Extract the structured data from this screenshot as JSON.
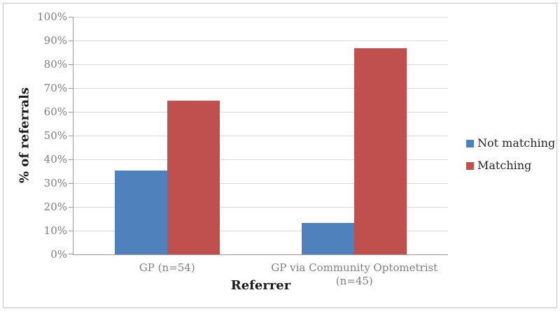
{
  "chart_data": {
    "type": "bar",
    "title": "",
    "xlabel": "Referrer",
    "ylabel": "% of referrals",
    "categories": [
      "GP (n=54)",
      "GP via Community Optometrist (n=45)"
    ],
    "series": [
      {
        "name": "Not matching",
        "color": "#4F81BD",
        "values": [
          35.2,
          13.3
        ]
      },
      {
        "name": "Matching",
        "color": "#C0504D",
        "values": [
          64.8,
          86.7
        ]
      }
    ],
    "ylim": [
      0,
      100
    ],
    "ytick_step": 10,
    "ytick_labels": [
      "0%",
      "10%",
      "20%",
      "30%",
      "40%",
      "50%",
      "60%",
      "70%",
      "80%",
      "90%",
      "100%"
    ],
    "grid": true,
    "legend_position": "right",
    "legend": [
      "Not matching",
      "Matching"
    ]
  },
  "colors": {
    "background": "#ffffff",
    "frame_border": "#c4c4c4",
    "axis_line": "#9b9b9b",
    "gridline": "#d9d9d9",
    "tick_label": "#808080",
    "category_label": "#808080",
    "axis_title": "#1a1a1a",
    "legend_text": "#262626",
    "series_not_matching": "#4F81BD",
    "series_matching": "#C0504D"
  }
}
